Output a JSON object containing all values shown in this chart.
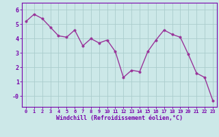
{
  "x": [
    0,
    1,
    2,
    3,
    4,
    5,
    6,
    7,
    8,
    9,
    10,
    11,
    12,
    13,
    14,
    15,
    16,
    17,
    18,
    19,
    20,
    21,
    22,
    23
  ],
  "y": [
    5.2,
    5.7,
    5.4,
    4.8,
    4.2,
    4.1,
    4.6,
    3.5,
    4.0,
    3.7,
    3.9,
    3.1,
    1.3,
    1.8,
    1.7,
    3.1,
    3.9,
    4.6,
    4.3,
    4.1,
    2.9,
    1.6,
    1.3,
    -0.3
  ],
  "line_color": "#993399",
  "marker_color": "#993399",
  "bg_color": "#cce8e8",
  "grid_color": "#aacccc",
  "xlabel": "Windchill (Refroidissement éolien,°C)",
  "ylabel": "",
  "ylim": [
    -0.75,
    6.5
  ],
  "xlim": [
    -0.5,
    23.5
  ],
  "yticks": [
    0,
    1,
    2,
    3,
    4,
    5,
    6
  ],
  "ytick_labels": [
    "-0",
    "1",
    "2",
    "3",
    "4",
    "5",
    "6"
  ],
  "xticks": [
    0,
    1,
    2,
    3,
    4,
    5,
    6,
    7,
    8,
    9,
    10,
    11,
    12,
    13,
    14,
    15,
    16,
    17,
    18,
    19,
    20,
    21,
    22,
    23
  ],
  "font_color": "#7700aa",
  "axis_color": "#7700aa",
  "tick_color": "#7700aa",
  "line_width": 1.0,
  "marker_size": 2.5,
  "xlabel_fontsize": 6.0,
  "xtick_fontsize": 5.0,
  "ytick_fontsize": 6.0
}
